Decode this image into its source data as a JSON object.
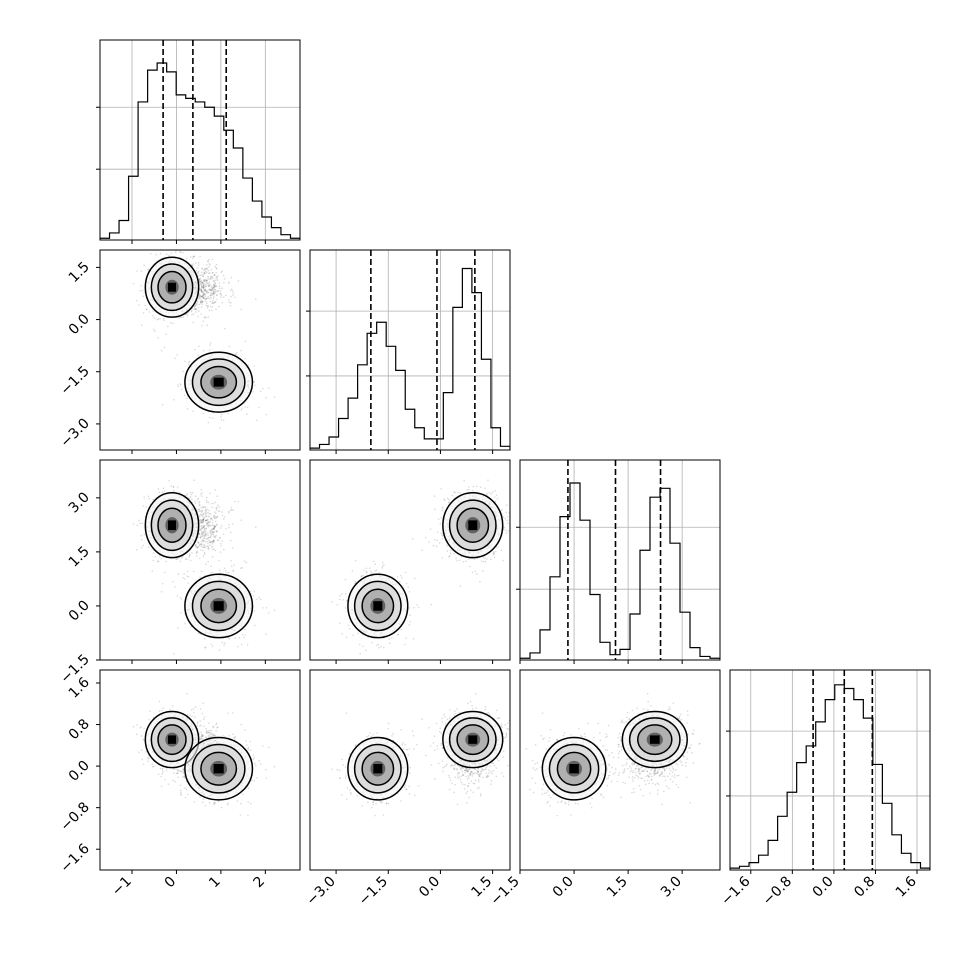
{
  "chart_data": {
    "type": "corner",
    "variables": [
      {
        "ticks": [
          -1,
          0,
          1,
          2
        ],
        "tick_labels": [
          "−1",
          "0",
          "1",
          "2"
        ],
        "lim": [
          -1.72,
          2.78
        ],
        "quantiles": [
          -0.3,
          0.37,
          1.12
        ]
      },
      {
        "ticks": [
          -3.0,
          -1.5,
          0.0,
          1.5
        ],
        "tick_labels": [
          "−3.0",
          "−1.5",
          "0.0",
          "1.5"
        ],
        "lim": [
          -3.75,
          2.0
        ],
        "quantiles": [
          -2.0,
          -0.1,
          0.99
        ]
      },
      {
        "ticks": [
          -1.5,
          0.0,
          1.5,
          3.0
        ],
        "tick_labels": [
          "−1.5",
          "0.0",
          "1.5",
          "3.0"
        ],
        "lim": [
          -1.5,
          4.05
        ],
        "quantiles": [
          -0.17,
          1.15,
          2.4
        ]
      },
      {
        "ticks": [
          -1.6,
          -0.8,
          0.0,
          0.8,
          1.6
        ],
        "tick_labels": [
          "−1.6",
          "−0.8",
          "0.0",
          "0.8",
          "1.6"
        ],
        "lim": [
          -2.0,
          1.85
        ],
        "quantiles": [
          -0.4,
          0.2,
          0.74
        ]
      }
    ],
    "histograms": [
      [
        0.01,
        0.04,
        0.11,
        0.36,
        0.78,
        0.96,
        1.0,
        0.95,
        0.82,
        0.8,
        0.78,
        0.75,
        0.7,
        0.62,
        0.52,
        0.35,
        0.22,
        0.13,
        0.07,
        0.03,
        0.01
      ],
      [
        0.01,
        0.03,
        0.07,
        0.17,
        0.28,
        0.46,
        0.63,
        0.69,
        0.56,
        0.43,
        0.22,
        0.12,
        0.06,
        0.06,
        0.31,
        0.77,
        0.98,
        0.85,
        0.49,
        0.12,
        0.02
      ],
      [
        0.01,
        0.04,
        0.17,
        0.47,
        0.81,
        1.0,
        0.79,
        0.37,
        0.1,
        0.03,
        0.06,
        0.26,
        0.62,
        0.92,
        0.97,
        0.66,
        0.27,
        0.07,
        0.02,
        0.01
      ],
      [
        0.01,
        0.02,
        0.04,
        0.08,
        0.16,
        0.29,
        0.42,
        0.58,
        0.67,
        0.8,
        0.92,
        1.0,
        0.98,
        0.92,
        0.82,
        0.57,
        0.36,
        0.19,
        0.09,
        0.04,
        0.01
      ]
    ],
    "hist_ymax": [
      1.13,
      1.08,
      1.13,
      1.08
    ],
    "clusters": [
      {
        "center": [
          -0.1,
          0.93,
          2.24,
          0.51
        ],
        "sd": [
          0.3,
          0.43,
          0.45,
          0.27
        ],
        "weight": 0.35
      },
      {
        "center": [
          0.95,
          -1.8,
          0.0,
          -0.05
        ],
        "sd": [
          0.38,
          0.43,
          0.44,
          0.3
        ],
        "weight": 0.35
      },
      {
        "center": [
          0.5,
          0.9,
          2.2,
          0.2
        ],
        "sd": [
          0.3,
          0.35,
          0.4,
          0.3
        ],
        "weight": 0.3
      }
    ],
    "grid": true,
    "scatter_color": "#333333",
    "line_color": "#000000"
  }
}
